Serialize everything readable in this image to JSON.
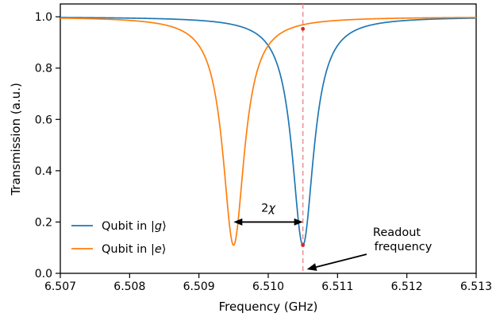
{
  "chart_data": {
    "type": "line",
    "xlabel": "Frequency (GHz)",
    "ylabel": "Transmission (a.u.)",
    "xlim": [
      6.507,
      6.513
    ],
    "ylim": [
      0.0,
      1.05
    ],
    "x_ticks": [
      "6.507",
      "6.508",
      "6.509",
      "6.510",
      "6.511",
      "6.512",
      "6.513"
    ],
    "y_ticks": [
      "0.0",
      "0.2",
      "0.4",
      "0.6",
      "0.8",
      "1.0"
    ],
    "grid": false,
    "legend_position": "lower-left",
    "series": [
      {
        "name": "Qubit in |g⟩",
        "legend_prefix": "Qubit in |",
        "legend_symbol": "g",
        "legend_suffix": "⟩",
        "color": "#1f77b4",
        "center": 6.5105,
        "min_value": 0.11,
        "half_width": 0.00019
      },
      {
        "name": "Qubit in |e⟩",
        "legend_prefix": "Qubit in |",
        "legend_symbol": "e",
        "legend_suffix": "⟩",
        "color": "#ff7f0e",
        "center": 6.5095,
        "min_value": 0.11,
        "half_width": 0.00019
      }
    ],
    "readout_line": {
      "x": 6.5105,
      "color": "#e8888a"
    },
    "readout_points": [
      {
        "x": 6.5105,
        "y": 0.953
      },
      {
        "x": 6.5105,
        "y": 0.11
      }
    ],
    "point_color": "#d62728",
    "chi_arrow": {
      "x_start": 6.5095,
      "x_end": 6.5105,
      "y": 0.2,
      "label_main": "2",
      "label_symbol": "χ"
    },
    "readout_annotation": {
      "line1": "Readout",
      "line2": "frequency",
      "target_x": 6.5105,
      "target_y": 0.0
    }
  }
}
